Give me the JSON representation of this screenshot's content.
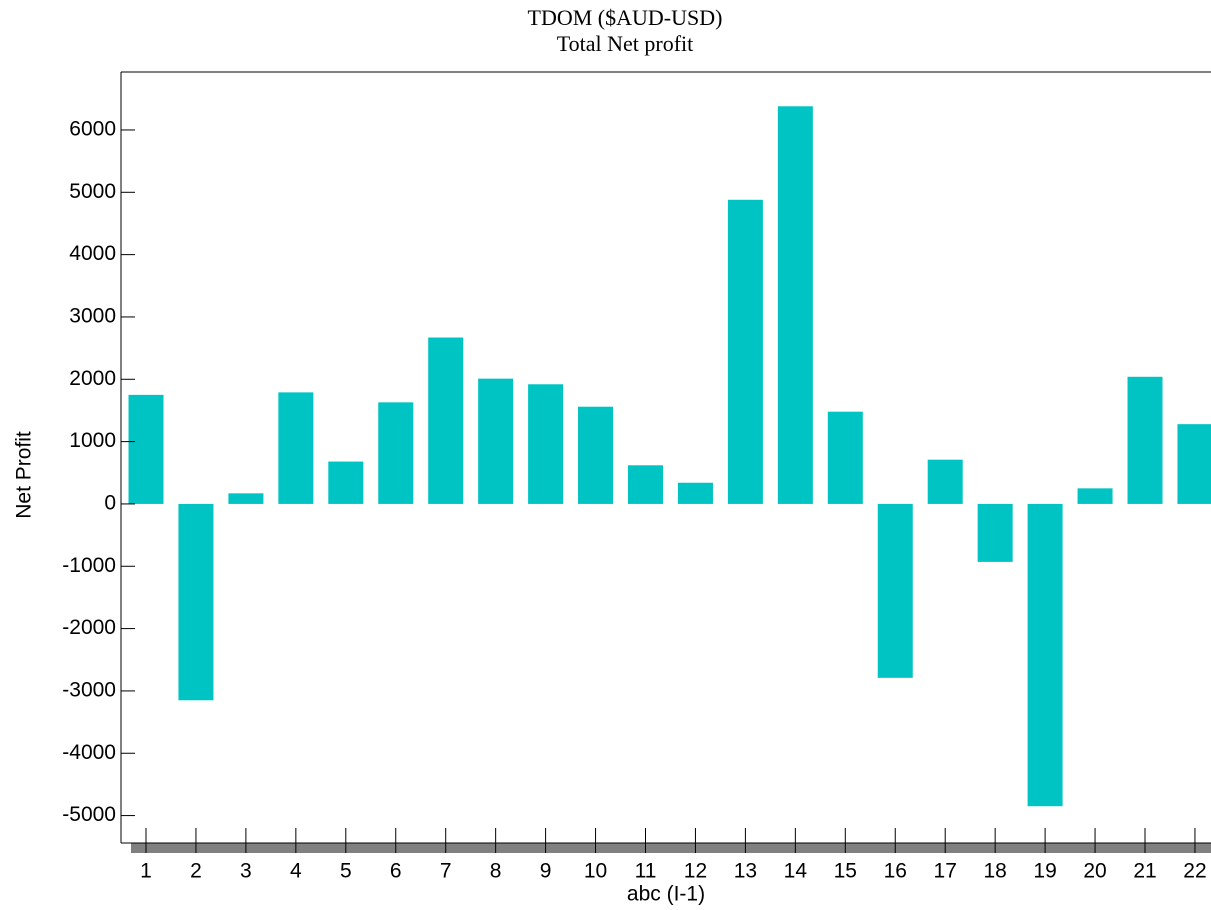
{
  "chart_data": {
    "type": "bar",
    "title": "TDOM ($AUD-USD)",
    "subtitle": "Total Net profit",
    "x_label": "abc (I-1)",
    "y_label": "Net Profit",
    "categories": [
      "1",
      "2",
      "3",
      "4",
      "5",
      "6",
      "7",
      "8",
      "9",
      "10",
      "11",
      "12",
      "13",
      "14",
      "15",
      "16",
      "17",
      "18",
      "19",
      "20",
      "21",
      "22"
    ],
    "values": [
      1750,
      -3150,
      170,
      1790,
      680,
      1630,
      2670,
      2010,
      1920,
      1560,
      620,
      340,
      4880,
      6380,
      1480,
      -2790,
      710,
      -930,
      -4850,
      250,
      2040,
      1280
    ],
    "color": "#00c4c4",
    "ylim": [
      -5440,
      6930
    ],
    "yticks": [
      -5000,
      -4000,
      -3000,
      -2000,
      -1000,
      0,
      1000,
      2000,
      3000,
      4000,
      5000,
      6000
    ],
    "grid": false
  }
}
